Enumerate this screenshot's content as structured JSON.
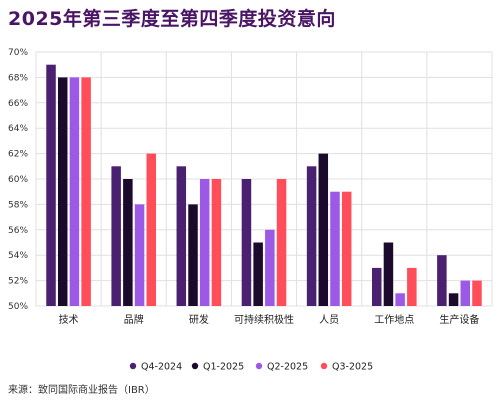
{
  "title": "2025年第三季度至第四季度投资意向",
  "source": "来源：致同国际商业报告（IBR）",
  "chart_data": {
    "type": "bar",
    "title": "2025年第三季度至第四季度投资意向",
    "xlabel": "",
    "ylabel": "",
    "ylim": [
      50,
      70
    ],
    "yticks": [
      "50%",
      "52%",
      "54%",
      "56%",
      "58%",
      "60%",
      "62%",
      "64%",
      "66%",
      "68%",
      "70%"
    ],
    "grid": true,
    "legend_position": "bottom",
    "categories": [
      "技术",
      "品牌",
      "研发",
      "可持续积极性",
      "人员",
      "工作地点",
      "生产设备"
    ],
    "series": [
      {
        "name": "Q4-2024",
        "color": "#4a2070",
        "values": [
          69,
          61,
          61,
          60,
          61,
          53,
          54
        ]
      },
      {
        "name": "Q1-2025",
        "color": "#1c0a2c",
        "values": [
          68,
          60,
          58,
          55,
          62,
          55,
          51
        ]
      },
      {
        "name": "Q2-2025",
        "color": "#9b59e6",
        "values": [
          68,
          58,
          60,
          56,
          59,
          51,
          52
        ]
      },
      {
        "name": "Q3-2025",
        "color": "#ff4d5a",
        "values": [
          68,
          62,
          60,
          60,
          59,
          53,
          52
        ]
      }
    ]
  }
}
